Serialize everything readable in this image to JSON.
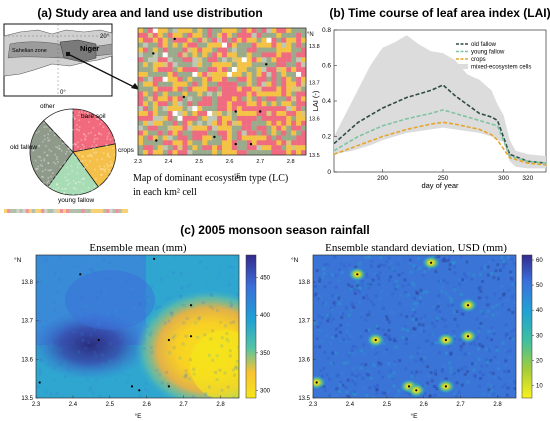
{
  "panel_a": {
    "title": "(a) Study area and land use distribution",
    "inset_labels": {
      "lat_20": "20°",
      "zone": "Sahelian zone",
      "country": "Niger",
      "lon_0": "0°"
    },
    "map_caption_line1": "Map of dominant ecosystem type (LC)",
    "map_caption_line2": "in each km² cell",
    "map_north_label": "°N",
    "map_east_label": "°E",
    "pie_labels": {
      "other": "other",
      "bare_soil": "bare soil",
      "old_fallow": "old fallow",
      "crops": "crops",
      "young_fallow": "young fallow"
    }
  },
  "panel_b": {
    "title": "(b) Time course of leaf area index (LAI)"
  },
  "panel_c": {
    "title": "(c) 2005 monsoon season rainfall",
    "left_title": "Ensemble mean (mm)",
    "right_title": "Ensemble standard deviation, USD (mm)",
    "x_axis_label": "°E",
    "y_axis_label": "°N"
  },
  "colors": {
    "bare_soil": "#f16a7d",
    "crops": "#f5c04a",
    "young_fallow": "#a8dcb4",
    "old_fallow": "#8f9a8a",
    "other": "#ffffff",
    "map_green": "#9aab8c",
    "map_pink": "#ef6b80",
    "map_yellow": "#f4c245"
  },
  "chart_data": [
    {
      "id": "land-use-map",
      "type": "heatmap",
      "x_ticks": [
        "2.3",
        "2.4",
        "2.5",
        "2.6",
        "2.7",
        "2.8"
      ],
      "y_ticks": [
        "13.8",
        "13.7",
        "13.6",
        "13.5"
      ],
      "xlim": [
        2.3,
        2.85
      ],
      "ylim": [
        13.5,
        13.85
      ],
      "categories": [
        "bare soil",
        "crops",
        "young fallow",
        "old fallow",
        "other"
      ],
      "points": [
        [
          2.42,
          13.82
        ],
        [
          2.35,
          13.78
        ],
        [
          2.72,
          13.75
        ],
        [
          2.45,
          13.66
        ],
        [
          2.62,
          13.62
        ],
        [
          2.7,
          13.62
        ],
        [
          2.55,
          13.55
        ],
        [
          2.62,
          13.53
        ],
        [
          2.67,
          13.53
        ],
        [
          2.36,
          13.54
        ]
      ]
    },
    {
      "id": "land-use-pie",
      "type": "pie",
      "labels": [
        "bare soil",
        "crops",
        "young fallow",
        "old fallow",
        "other"
      ],
      "values": [
        22,
        18,
        20,
        28,
        12
      ]
    },
    {
      "id": "lai-time-course",
      "type": "line",
      "xlabel": "day of year",
      "ylabel": "LAI (-)",
      "xlim": [
        160,
        335
      ],
      "ylim": [
        0,
        0.8
      ],
      "x_ticks": [
        200,
        250,
        300
      ],
      "x_tick_labels": [
        "200",
        "250",
        "300"
      ],
      "extra_x_ticks": [
        320
      ],
      "y_ticks": [
        0,
        0.2,
        0.4,
        0.6,
        0.8
      ],
      "y_tick_labels": [
        "0",
        "0.2",
        "0.4",
        "0.6",
        "0.8"
      ],
      "legend": "top-right",
      "band": {
        "name": "mixed-ecosystem cells",
        "x": [
          160,
          175,
          190,
          200,
          210,
          220,
          230,
          240,
          250,
          260,
          270,
          280,
          290,
          295,
          300,
          305,
          310,
          320,
          335
        ],
        "upper": [
          0.2,
          0.4,
          0.6,
          0.7,
          0.73,
          0.77,
          0.72,
          0.68,
          0.67,
          0.63,
          0.55,
          0.52,
          0.46,
          0.38,
          0.32,
          0.18,
          0.12,
          0.1,
          0.09
        ],
        "lower": [
          0.1,
          0.12,
          0.15,
          0.18,
          0.2,
          0.22,
          0.23,
          0.24,
          0.25,
          0.24,
          0.23,
          0.22,
          0.2,
          0.18,
          0.17,
          0.06,
          0.03,
          0.02,
          0.02
        ]
      },
      "series": [
        {
          "name": "old fallow",
          "color": "#2f4b45",
          "x": [
            160,
            180,
            200,
            220,
            240,
            250,
            260,
            280,
            290,
            295,
            305,
            320,
            335
          ],
          "values": [
            0.16,
            0.28,
            0.36,
            0.42,
            0.46,
            0.49,
            0.43,
            0.33,
            0.31,
            0.29,
            0.1,
            0.06,
            0.05
          ]
        },
        {
          "name": "young fallow",
          "color": "#7fc4a1",
          "x": [
            160,
            180,
            200,
            220,
            240,
            250,
            260,
            280,
            290,
            295,
            305,
            320,
            335
          ],
          "values": [
            0.12,
            0.2,
            0.26,
            0.3,
            0.33,
            0.35,
            0.33,
            0.29,
            0.27,
            0.26,
            0.09,
            0.06,
            0.05
          ]
        },
        {
          "name": "crops",
          "color": "#e6a52c",
          "x": [
            160,
            180,
            200,
            220,
            240,
            250,
            260,
            280,
            290,
            295,
            305,
            320,
            335
          ],
          "values": [
            0.1,
            0.15,
            0.2,
            0.24,
            0.27,
            0.28,
            0.27,
            0.24,
            0.21,
            0.18,
            0.08,
            0.05,
            0.04
          ]
        }
      ]
    },
    {
      "id": "rainfall-mean",
      "type": "heatmap",
      "title": "Ensemble mean (mm)",
      "xlabel": "°E",
      "ylabel": "°N",
      "x_ticks": [
        "2.3",
        "2.4",
        "2.5",
        "2.6",
        "2.7",
        "2.8"
      ],
      "y_ticks": [
        "13.8",
        "13.7",
        "13.6",
        "13.5"
      ],
      "colorbar_ticks": [
        300,
        350,
        400,
        450
      ],
      "colorbar_labels": [
        "300",
        "350",
        "400",
        "450"
      ],
      "colorbar_range": [
        290,
        480
      ],
      "points": [
        [
          2.42,
          13.82
        ],
        [
          2.62,
          13.86
        ],
        [
          2.72,
          13.74
        ],
        [
          2.47,
          13.65
        ],
        [
          2.66,
          13.65
        ],
        [
          2.72,
          13.66
        ],
        [
          2.56,
          13.53
        ],
        [
          2.58,
          13.52
        ],
        [
          2.66,
          13.53
        ],
        [
          2.31,
          13.54
        ]
      ]
    },
    {
      "id": "rainfall-std",
      "type": "heatmap",
      "title": "Ensemble standard deviation, USD (mm)",
      "xlabel": "°E",
      "ylabel": "°N",
      "x_ticks": [
        "2.3",
        "2.4",
        "2.5",
        "2.6",
        "2.7",
        "2.8"
      ],
      "y_ticks": [
        "13.8",
        "13.7",
        "13.6",
        "13.5"
      ],
      "colorbar_ticks": [
        10,
        20,
        30,
        40,
        50,
        60
      ],
      "colorbar_labels": [
        "10",
        "20",
        "30",
        "40",
        "50",
        "60"
      ],
      "colorbar_range": [
        5,
        62
      ],
      "points": [
        [
          2.42,
          13.82
        ],
        [
          2.62,
          13.85
        ],
        [
          2.72,
          13.74
        ],
        [
          2.47,
          13.65
        ],
        [
          2.66,
          13.65
        ],
        [
          2.72,
          13.66
        ],
        [
          2.56,
          13.53
        ],
        [
          2.58,
          13.52
        ],
        [
          2.66,
          13.53
        ],
        [
          2.31,
          13.54
        ]
      ]
    }
  ]
}
